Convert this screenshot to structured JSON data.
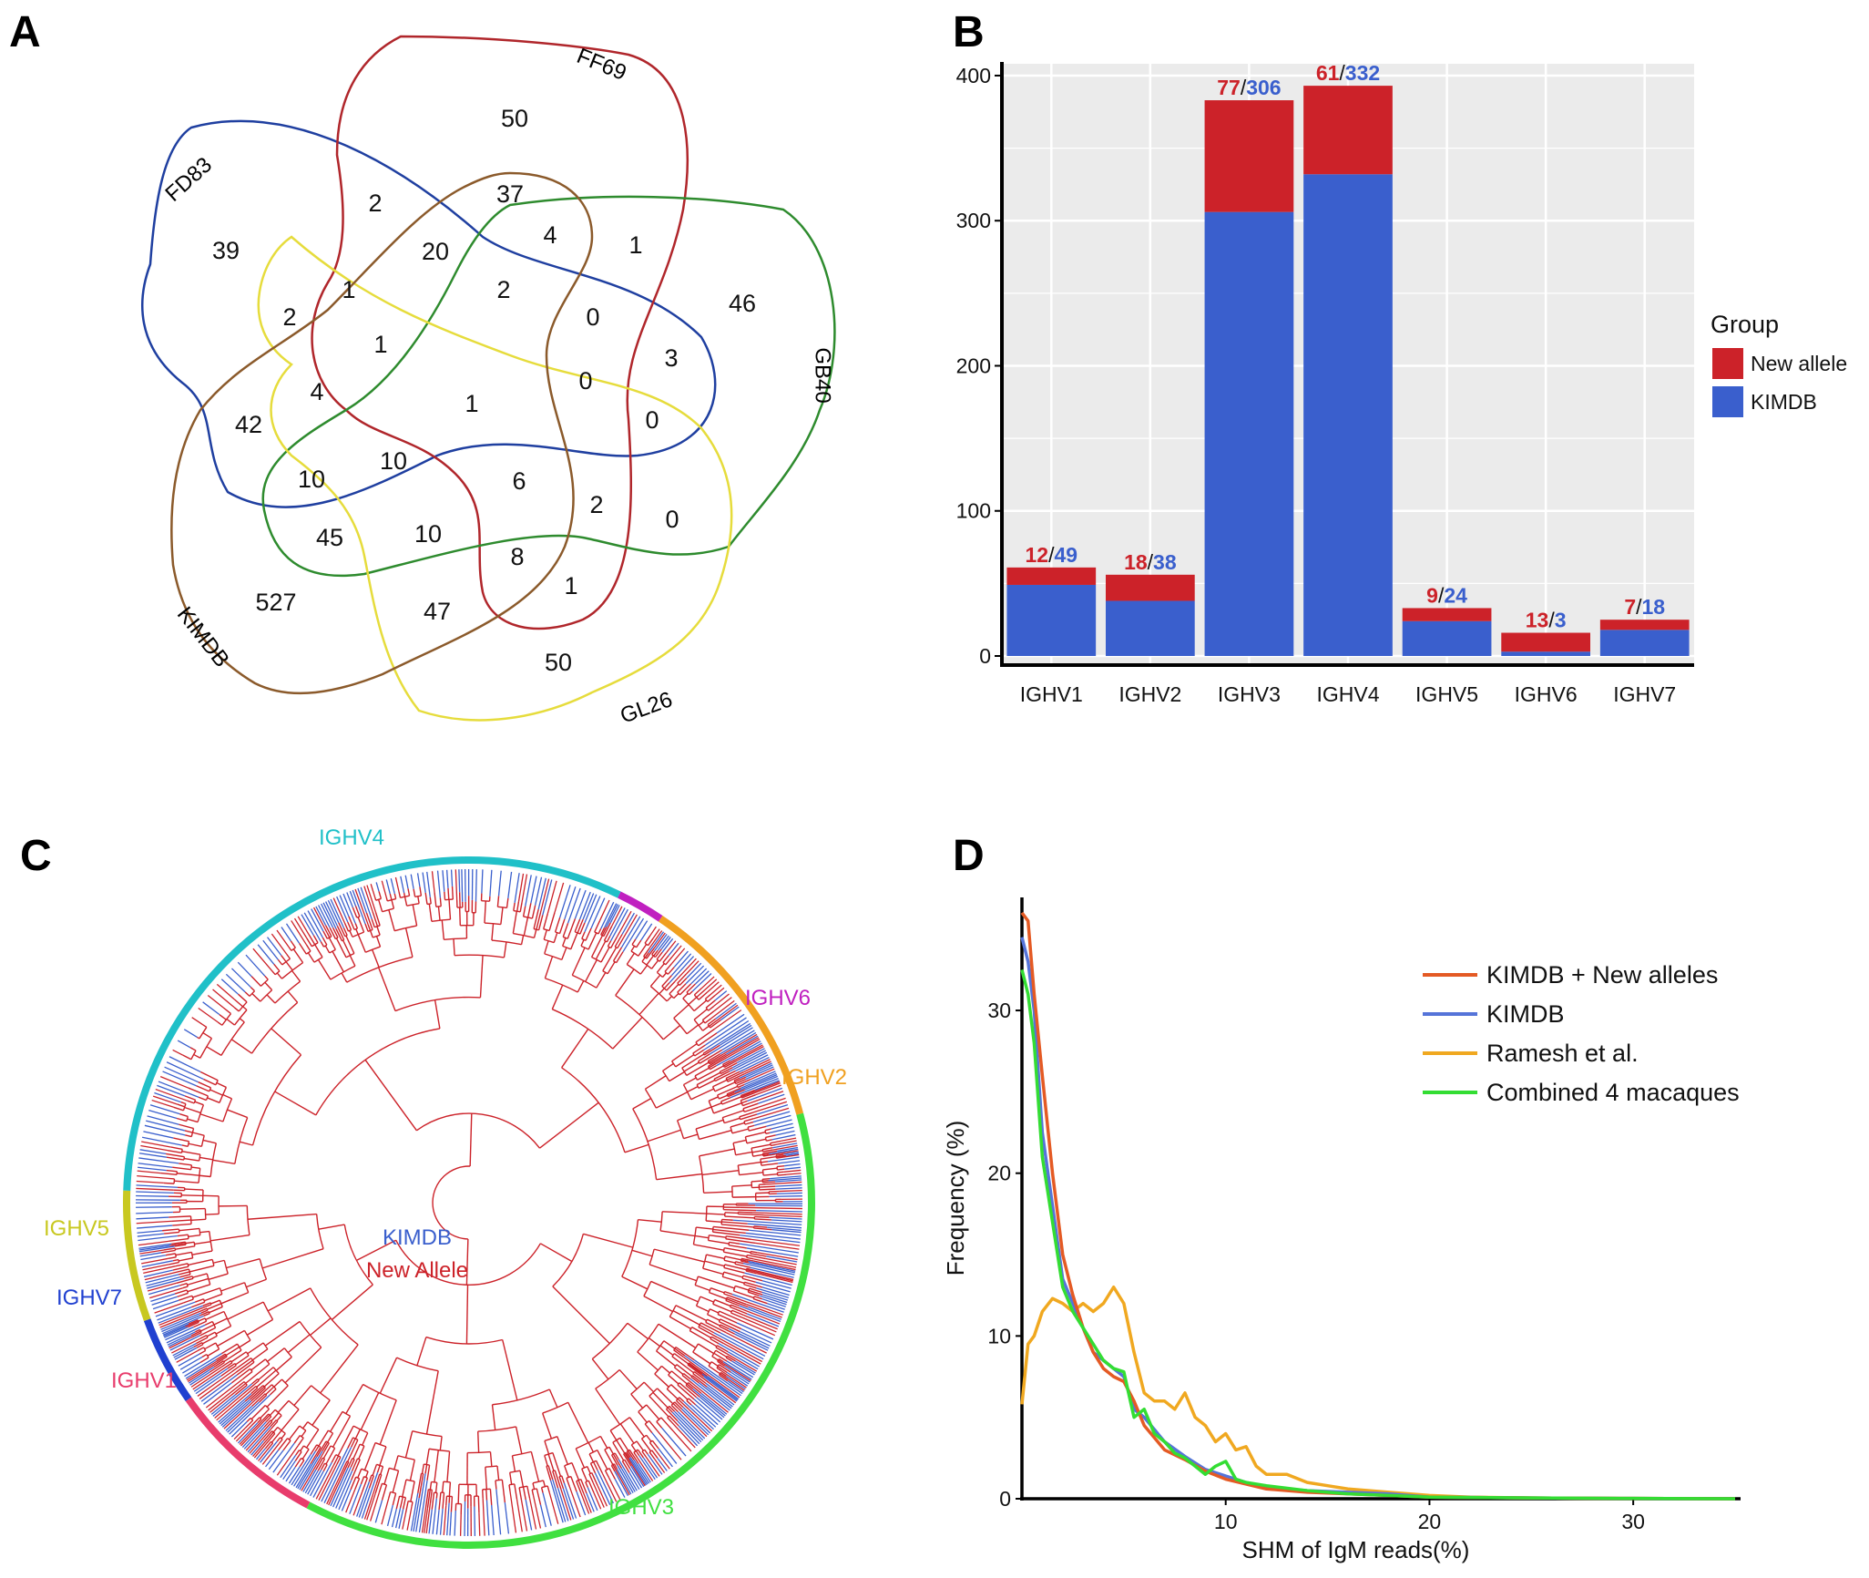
{
  "panels": {
    "a": "A",
    "b": "B",
    "c": "C",
    "d": "D"
  },
  "chart_data": [
    {
      "type": "venn",
      "panel": "A",
      "sets": [
        {
          "name": "FD83",
          "color": "#1f3fa0"
        },
        {
          "name": "FF69",
          "color": "#b0262b"
        },
        {
          "name": "GB40",
          "color": "#2e8b2e"
        },
        {
          "name": "GL26",
          "color": "#e6dc3c"
        },
        {
          "name": "KIMDB",
          "color": "#8b5a2b"
        }
      ],
      "regions": [
        {
          "value": 50,
          "sets": [
            "FF69"
          ]
        },
        {
          "value": 39,
          "sets": [
            "FD83"
          ]
        },
        {
          "value": 46,
          "sets": [
            "GB40"
          ]
        },
        {
          "value": 50,
          "sets": [
            "GL26"
          ]
        },
        {
          "value": 527,
          "sets": [
            "KIMDB"
          ]
        },
        {
          "value": 2,
          "sets": [
            "FD83",
            "FF69"
          ]
        },
        {
          "value": 37,
          "sets": [
            "FF69",
            "KIMDB"
          ]
        },
        {
          "value": 1,
          "sets": [
            "FF69",
            "GB40"
          ]
        },
        {
          "value": 4,
          "sets": [
            "FF69",
            "GB40",
            "KIMDB"
          ]
        },
        {
          "value": 20,
          "sets": [
            "FD83",
            "FF69",
            "KIMDB"
          ]
        },
        {
          "value": 2,
          "sets": [
            "FD83",
            "FF69",
            "GB40",
            "KIMDB"
          ]
        },
        {
          "value": 0,
          "sets": [
            "FF69",
            "GB40",
            "GL26",
            "KIMDB"
          ]
        },
        {
          "value": 3,
          "sets": [
            "FD83",
            "FF69",
            "GB40"
          ]
        },
        {
          "value": 0,
          "sets": [
            "FD83",
            "FF69",
            "GB40",
            "GL26"
          ]
        },
        {
          "value": 0,
          "sets": [
            "FD83",
            "GB40",
            "GL26"
          ]
        },
        {
          "value": 1,
          "sets": [
            "FD83",
            "FF69",
            "GL26"
          ]
        },
        {
          "value": 2,
          "sets": [
            "FD83",
            "GL26"
          ]
        },
        {
          "value": 1,
          "sets": [
            "FD83",
            "FF69",
            "GL26",
            "KIMDB"
          ]
        },
        {
          "value": 4,
          "sets": [
            "FD83",
            "GL26",
            "KIMDB"
          ]
        },
        {
          "value": 1,
          "sets": [
            "FD83",
            "FF69",
            "GB40",
            "GL26",
            "KIMDB"
          ]
        },
        {
          "value": 42,
          "sets": [
            "FD83",
            "KIMDB"
          ]
        },
        {
          "value": 10,
          "sets": [
            "FD83",
            "GB40",
            "KIMDB"
          ]
        },
        {
          "value": 10,
          "sets": [
            "FD83",
            "GB40",
            "GL26",
            "KIMDB"
          ]
        },
        {
          "value": 6,
          "sets": [
            "FD83",
            "GB40",
            "GL26"
          ]
        },
        {
          "value": 2,
          "sets": [
            "FF69",
            "GB40",
            "GL26"
          ]
        },
        {
          "value": 0,
          "sets": [
            "GB40",
            "GL26"
          ]
        },
        {
          "value": 45,
          "sets": [
            "GB40",
            "KIMDB"
          ]
        },
        {
          "value": 10,
          "sets": [
            "GB40",
            "GL26",
            "KIMDB"
          ]
        },
        {
          "value": 8,
          "sets": [
            "FF69",
            "GB40",
            "GL26",
            "KIMDB"
          ]
        },
        {
          "value": 1,
          "sets": [
            "FF69",
            "GL26"
          ]
        },
        {
          "value": 47,
          "sets": [
            "GL26",
            "KIMDB"
          ]
        }
      ]
    },
    {
      "type": "bar",
      "panel": "B",
      "stacked": true,
      "categories": [
        "IGHV1",
        "IGHV2",
        "IGHV3",
        "IGHV4",
        "IGHV5",
        "IGHV6",
        "IGHV7"
      ],
      "series": [
        {
          "name": "KIMDB",
          "color": "#3a5fcd",
          "values": [
            49,
            38,
            306,
            332,
            24,
            3,
            18
          ]
        },
        {
          "name": "New allele",
          "color": "#cc2229",
          "values": [
            12,
            18,
            77,
            61,
            9,
            13,
            7
          ]
        }
      ],
      "label_separator": "/",
      "legend": {
        "title": "Group",
        "entries": [
          "New allele",
          "KIMDB"
        ],
        "position": "right"
      },
      "yticks": [
        0,
        100,
        200,
        300,
        400
      ],
      "ylim": [
        0,
        400
      ],
      "xlabel": "",
      "ylabel": ""
    },
    {
      "type": "tree",
      "panel": "C",
      "layout": "circular",
      "clades": [
        {
          "name": "IGHV4",
          "color": "#20c0c8"
        },
        {
          "name": "IGHV6",
          "color": "#c020c0"
        },
        {
          "name": "IGHV2",
          "color": "#f0a020"
        },
        {
          "name": "IGHV3",
          "color": "#40e040"
        },
        {
          "name": "IGHV1",
          "color": "#e83c6c"
        },
        {
          "name": "IGHV7",
          "color": "#2040d0"
        },
        {
          "name": "IGHV5",
          "color": "#c8c820"
        }
      ],
      "branch_legend": [
        {
          "name": "KIMDB",
          "color": "#3a5fcd"
        },
        {
          "name": "New Allele",
          "color": "#cc2229"
        }
      ]
    },
    {
      "type": "line",
      "panel": "D",
      "xlabel": "SHM of IgM reads(%)",
      "ylabel": "Frequency (%)",
      "xlim": [
        0,
        35
      ],
      "ylim": [
        0,
        37
      ],
      "xticks": [
        10,
        20,
        30
      ],
      "yticks": [
        0,
        10,
        20,
        30
      ],
      "legend_position": "top-right",
      "series": [
        {
          "name": "KIMDB + New alleles",
          "color": "#e45a24",
          "x": [
            0,
            0.3,
            0.6,
            1,
            1.5,
            2,
            2.5,
            3,
            3.5,
            4,
            4.5,
            5,
            5.5,
            6,
            7,
            8,
            9,
            10,
            11,
            12,
            14,
            16,
            18,
            20,
            25,
            30,
            35
          ],
          "y": [
            36,
            35.5,
            31,
            26,
            20,
            15,
            12.5,
            10.5,
            9,
            8,
            7.5,
            7.2,
            6,
            4.5,
            3,
            2.4,
            1.7,
            1.2,
            0.9,
            0.6,
            0.4,
            0.3,
            0.2,
            0.1,
            0.05,
            0.02,
            0
          ]
        },
        {
          "name": "KIMDB",
          "color": "#5574d9",
          "x": [
            0,
            0.3,
            0.6,
            1,
            1.5,
            2,
            2.5,
            3,
            3.5,
            4,
            4.5,
            5,
            5.5,
            6,
            7,
            8,
            9,
            10,
            11,
            12,
            14,
            16,
            18,
            20,
            25,
            30,
            35
          ],
          "y": [
            34.5,
            33,
            30,
            22.5,
            18,
            13.5,
            12,
            10.5,
            9,
            8.5,
            8,
            7.5,
            5.5,
            5,
            3.5,
            2.6,
            1.8,
            1.4,
            1,
            0.7,
            0.5,
            0.4,
            0.3,
            0.1,
            0.05,
            0.02,
            0
          ]
        },
        {
          "name": "Ramesh et al.",
          "color": "#f0a820",
          "x": [
            0,
            0.3,
            0.6,
            1,
            1.5,
            2,
            2.5,
            3,
            3.5,
            4,
            4.5,
            5,
            5.5,
            6,
            6.5,
            7,
            7.5,
            8,
            8.5,
            9,
            9.5,
            10,
            10.5,
            11,
            11.5,
            12,
            13,
            14,
            15,
            16,
            18,
            20,
            22,
            25,
            30,
            35
          ],
          "y": [
            5.8,
            9.5,
            10,
            11.5,
            12.3,
            12,
            11.5,
            12,
            11.5,
            12,
            13,
            12,
            9,
            6.5,
            6,
            6,
            5.5,
            6.5,
            5,
            4.5,
            3.5,
            4,
            3,
            3.2,
            2,
            1.5,
            1.5,
            1,
            0.8,
            0.6,
            0.4,
            0.2,
            0.1,
            0.05,
            0.02,
            0
          ]
        },
        {
          "name": "Combined 4 macaques",
          "color": "#33dd33",
          "x": [
            0,
            0.3,
            0.6,
            1,
            1.5,
            2,
            2.5,
            3,
            3.5,
            4,
            4.5,
            5,
            5.5,
            6,
            6.5,
            7,
            7.5,
            8,
            8.5,
            9,
            9.5,
            10,
            10.5,
            11,
            12,
            14,
            16,
            18,
            20,
            25,
            30,
            35
          ],
          "y": [
            32.5,
            31,
            28,
            21,
            17,
            13,
            11.5,
            10.5,
            9.5,
            8.5,
            8,
            7.8,
            5,
            5.5,
            4,
            3.5,
            2.8,
            2.5,
            2,
            1.5,
            2,
            2.3,
            1.2,
            1,
            0.8,
            0.5,
            0.3,
            0.2,
            0.1,
            0.05,
            0.02,
            0
          ]
        }
      ]
    }
  ]
}
